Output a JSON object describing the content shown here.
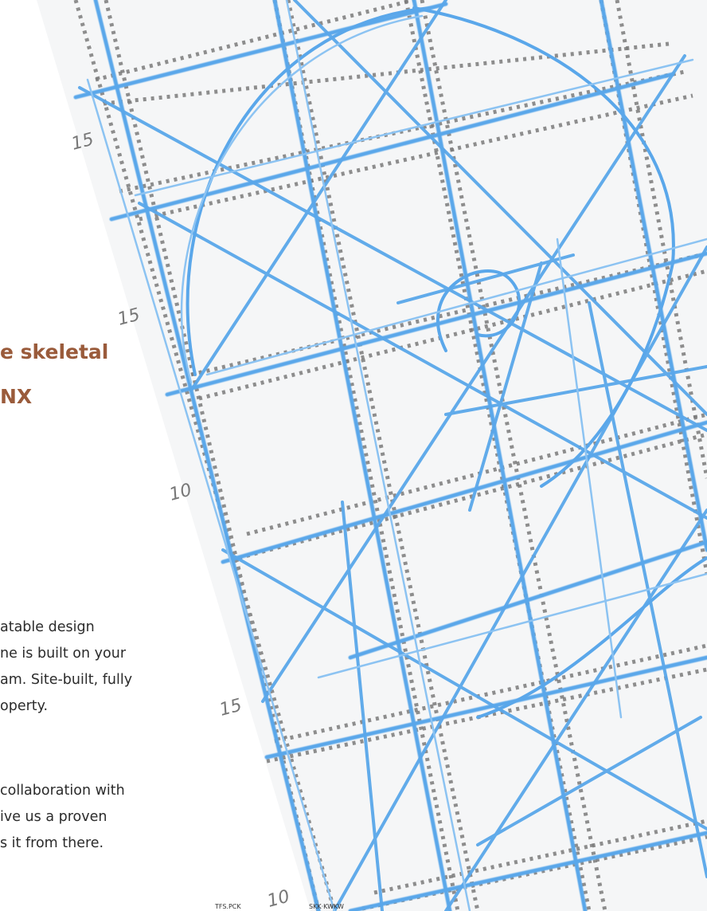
{
  "heading": {
    "line1": "e skeletal",
    "line2": "NX"
  },
  "paragraph1": {
    "line1": "atable design",
    "line2": "ne is built on your",
    "line3": "am. Site-built, fully",
    "line4": "operty."
  },
  "paragraph2": {
    "line1": "collaboration with",
    "line2": "ive us a proven",
    "line3": "s it from there."
  },
  "sketch": {
    "dimension_labels": [
      "15",
      "15",
      "10",
      "15",
      "10"
    ],
    "footer_scribbles": [
      "TFS.PCK",
      "SKK·KWKW"
    ],
    "colors": {
      "sheet": "#f5f6f7",
      "blue_line": "#5aa7ea",
      "blue_line_light": "#8cc3f2",
      "dashed_line": "#7b7b7b",
      "heading": "#9a5b3b",
      "body": "#2b2b2b"
    }
  }
}
